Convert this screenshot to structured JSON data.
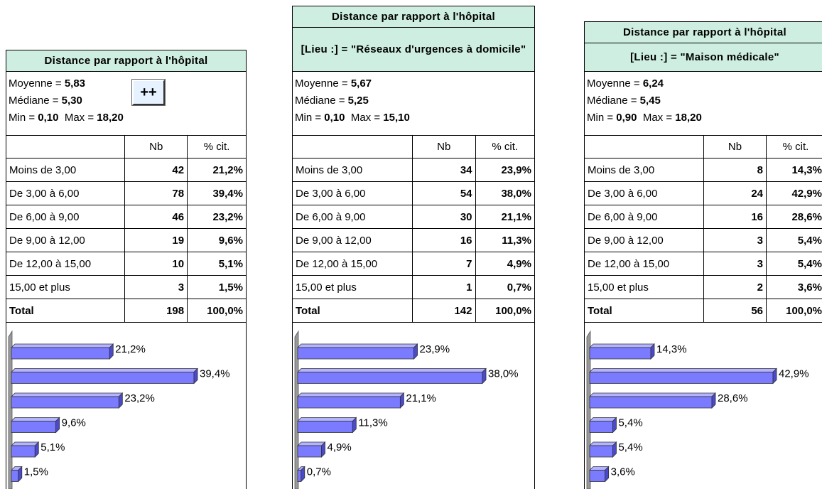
{
  "button": "++",
  "panels": [
    {
      "title": "Distance par rapport à l'hôpital",
      "stats": {
        "mean_label": "Moyenne =",
        "mean": "5,83",
        "median_label": "Médiane =",
        "median": "5,30",
        "min_label": "Min =",
        "min": "0,10",
        "max_label": "Max =",
        "max": "18,20"
      },
      "table": {
        "header": [
          "Nb",
          "% cit."
        ],
        "rows": [
          {
            "label": "Moins de 3,00",
            "nb": 42,
            "pct": "21,2%"
          },
          {
            "label": "De 3,00 à 6,00",
            "nb": 78,
            "pct": "39,4%"
          },
          {
            "label": "De 6,00 à 9,00",
            "nb": 46,
            "pct": "23,2%"
          },
          {
            "label": "De 9,00 à 12,00",
            "nb": 19,
            "pct": "9,6%"
          },
          {
            "label": "De 12,00 à 15,00",
            "nb": 10,
            "pct": "5,1%"
          },
          {
            "label": "15,00 et plus",
            "nb": 3,
            "pct": "1,5%"
          }
        ],
        "total": {
          "label": "Total",
          "nb": 198,
          "pct": "100,0%"
        }
      },
      "bars": [
        21.2,
        39.4,
        23.2,
        9.6,
        5.1,
        1.5
      ]
    },
    {
      "title": "Distance par rapport à l'hôpital",
      "subtitle": "[Lieu :] = \"Réseaux d'urgences à domicile\"",
      "stats": {
        "mean_label": "Moyenne =",
        "mean": "5,67",
        "median_label": "Médiane =",
        "median": "5,25",
        "min_label": "Min =",
        "min": "0,10",
        "max_label": "Max =",
        "max": "15,10"
      },
      "table": {
        "header": [
          "Nb",
          "% cit."
        ],
        "rows": [
          {
            "label": "Moins de 3,00",
            "nb": 34,
            "pct": "23,9%"
          },
          {
            "label": "De 3,00 à 6,00",
            "nb": 54,
            "pct": "38,0%"
          },
          {
            "label": "De 6,00 à 9,00",
            "nb": 30,
            "pct": "21,1%"
          },
          {
            "label": "De 9,00 à 12,00",
            "nb": 16,
            "pct": "11,3%"
          },
          {
            "label": "De 12,00 à 15,00",
            "nb": 7,
            "pct": "4,9%"
          },
          {
            "label": "15,00 et plus",
            "nb": 1,
            "pct": "0,7%"
          }
        ],
        "total": {
          "label": "Total",
          "nb": 142,
          "pct": "100,0%"
        }
      },
      "bars": [
        23.9,
        38.0,
        21.1,
        11.3,
        4.9,
        0.7
      ]
    },
    {
      "title": "Distance par rapport à l'hôpital",
      "subtitle": "[Lieu :] = \"Maison médicale\"",
      "stats": {
        "mean_label": "Moyenne =",
        "mean": "6,24",
        "median_label": "Médiane =",
        "median": "5,45",
        "min_label": "Min =",
        "min": "0,90",
        "max_label": "Max =",
        "max": "18,20"
      },
      "table": {
        "header": [
          "Nb",
          "% cit."
        ],
        "rows": [
          {
            "label": "Moins de 3,00",
            "nb": 8,
            "pct": "14,3%"
          },
          {
            "label": "De 3,00 à 6,00",
            "nb": 24,
            "pct": "42,9%"
          },
          {
            "label": "De 6,00 à 9,00",
            "nb": 16,
            "pct": "28,6%"
          },
          {
            "label": "De 9,00 à 12,00",
            "nb": 3,
            "pct": "5,4%"
          },
          {
            "label": "De 12,00 à 15,00",
            "nb": 3,
            "pct": "5,4%"
          },
          {
            "label": "15,00 et plus",
            "nb": 2,
            "pct": "3,6%"
          }
        ],
        "total": {
          "label": "Total",
          "nb": 56,
          "pct": "100,0%"
        }
      },
      "bars": [
        14.3,
        42.9,
        28.6,
        5.4,
        5.4,
        3.6
      ]
    }
  ]
}
